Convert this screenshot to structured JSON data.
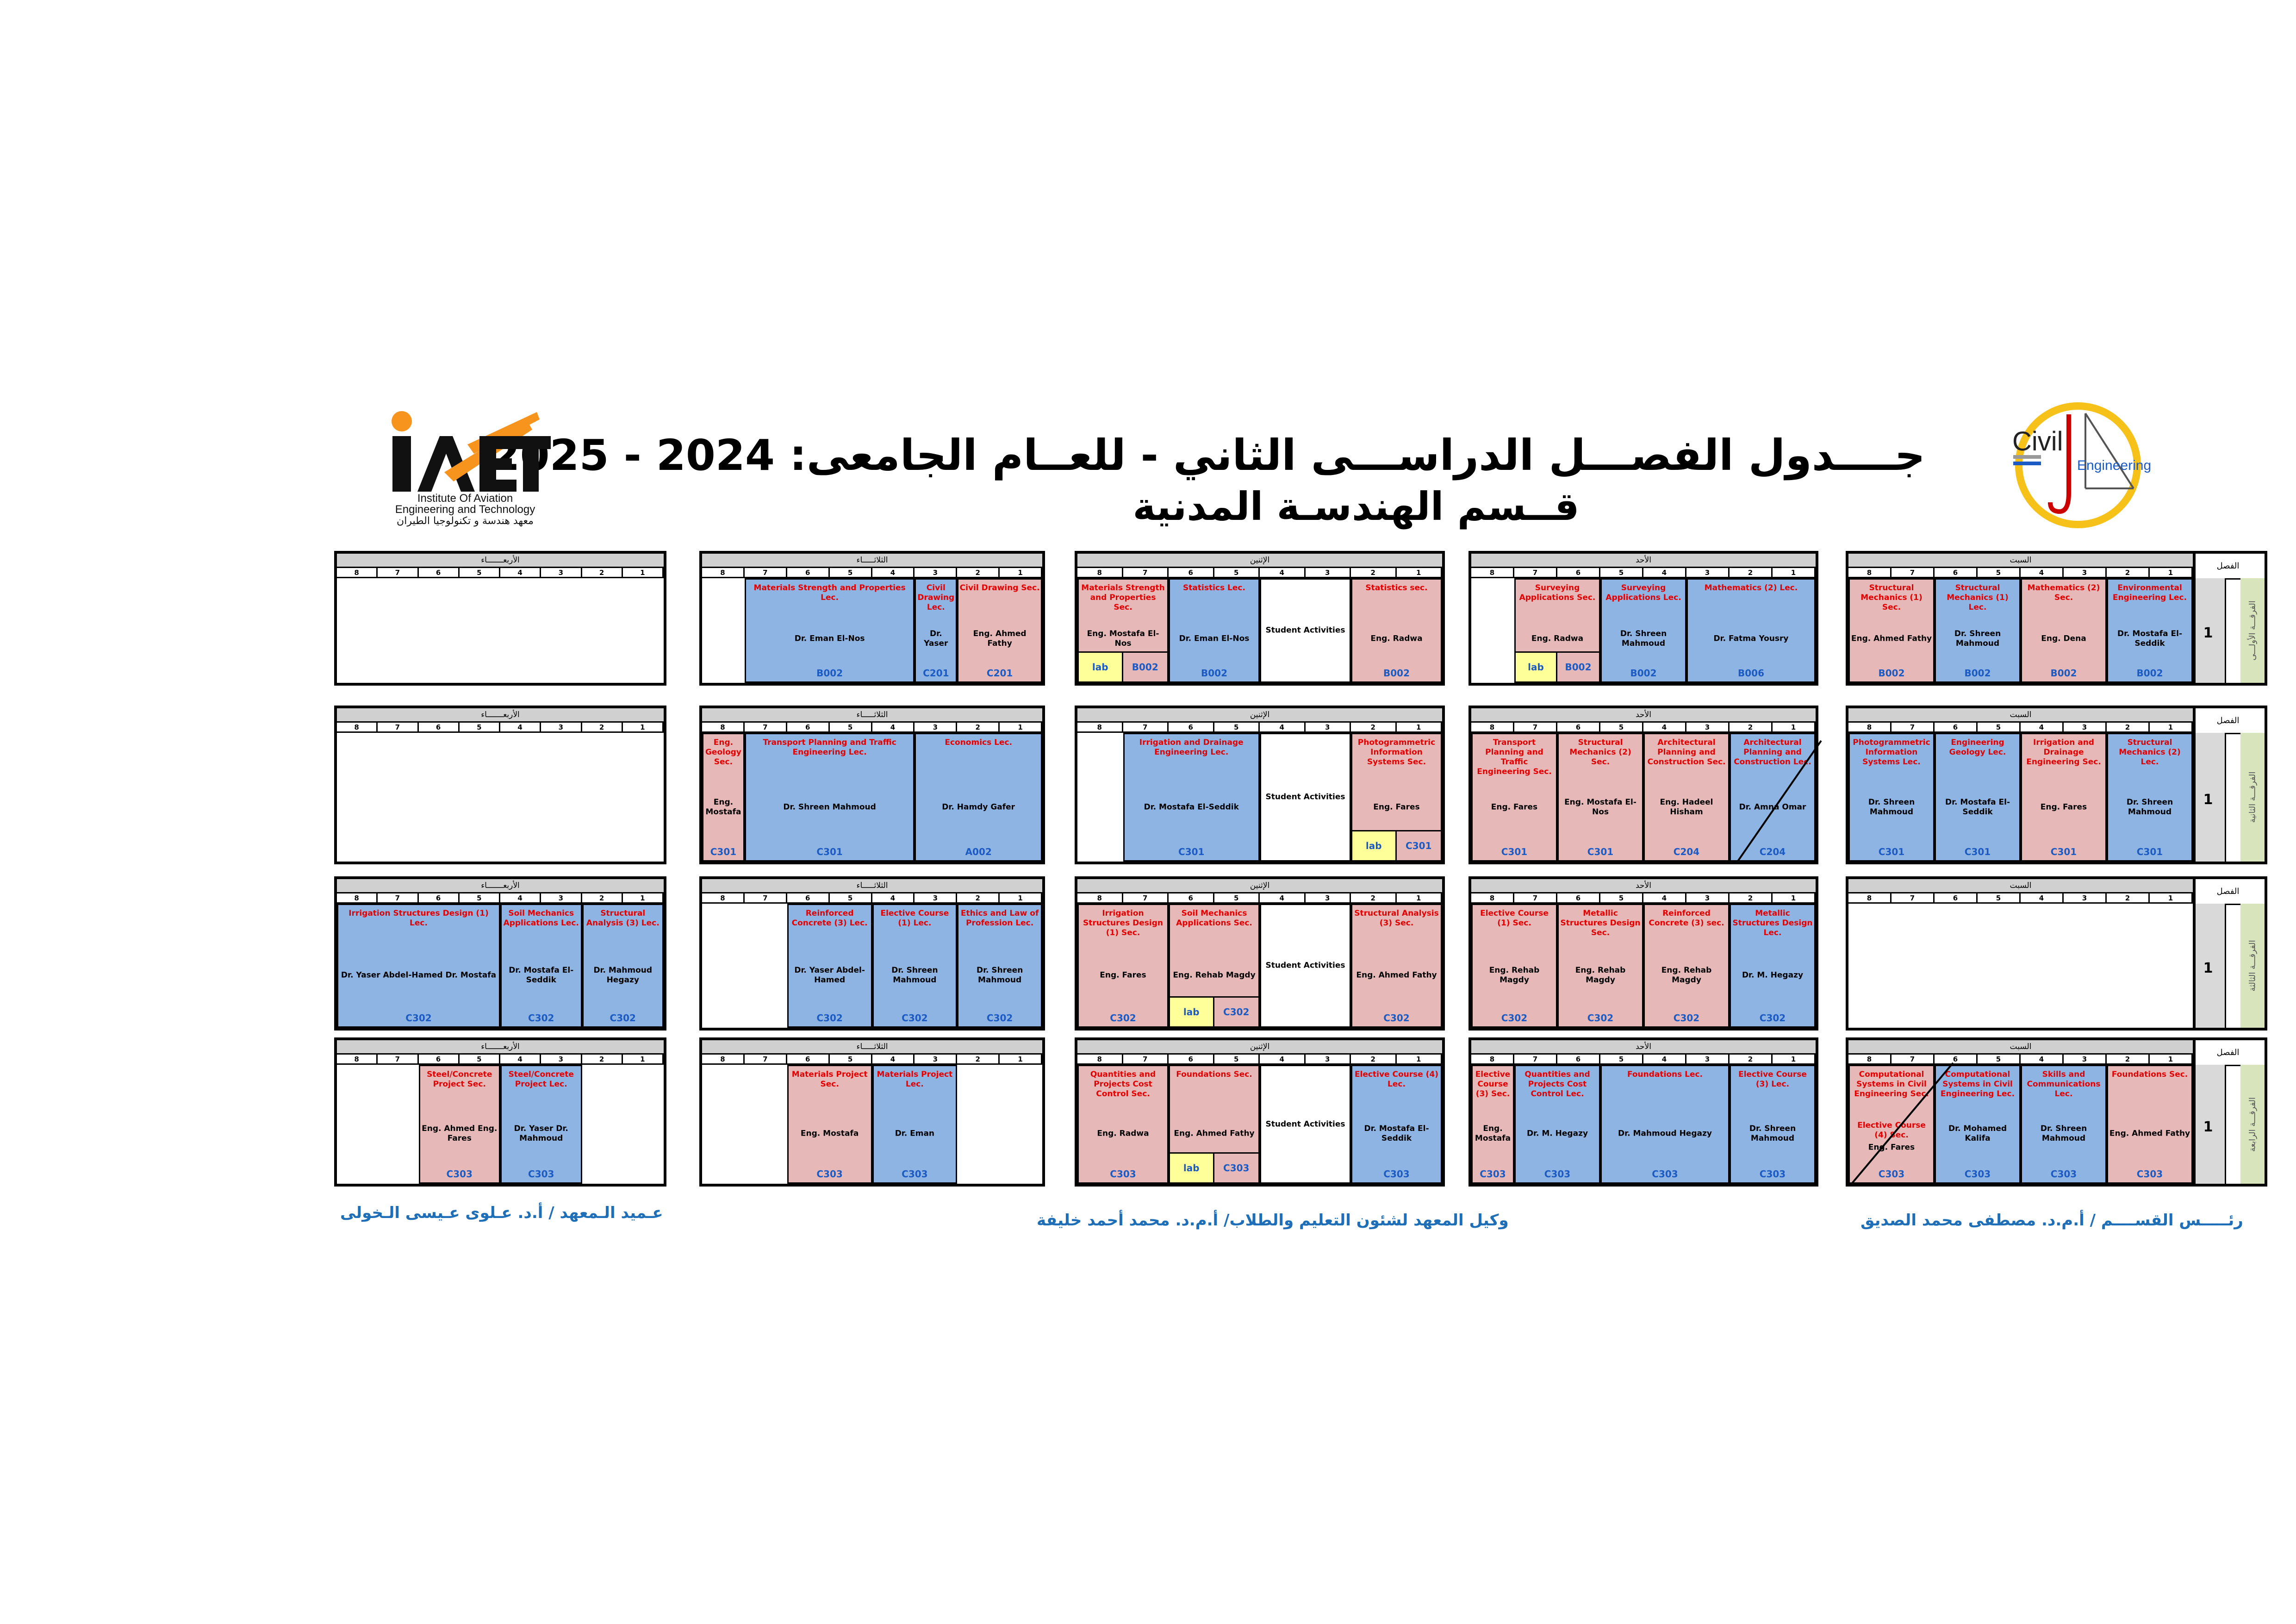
{
  "header": {
    "title_line1": "جــــدول الفصـــل الدراســـى الثاني   -    للعــام الجامعى:  2024  - 2025",
    "title_line2": "قــسم الهندسـة المدنية"
  },
  "logos": {
    "iaet_mark": "IAET",
    "iaet_name_en": "Institute Of Aviation Engineering and Technology",
    "iaet_name_ar": "معهد هندسة و تكنولوجيا الطيران",
    "civil_mark": "Civil",
    "civil_sub": "Engineering"
  },
  "colors": {
    "section": "#e6b8b7",
    "lecture": "#8db4e2",
    "lab": "#ffff99",
    "room_text": "#1d5bc4",
    "subject_text": "#e30000"
  },
  "frame": {
    "class_header": "الفصل"
  },
  "periods": [
    "8",
    "7",
    "6",
    "5",
    "4",
    "3",
    "2",
    "1"
  ],
  "years": [
    {
      "num": "1",
      "label": "الفرقـــة الأولـــى",
      "days": [
        {
          "name": "السبت",
          "cells": [
            {
              "type": "sec",
              "t": "Structural Mechanics (1) Sec.",
              "i": "Eng. Ahmed Fathy",
              "r": "B002"
            },
            {
              "type": "lec",
              "t": "Structural Mechanics (1) Lec.",
              "i": "Dr. Shreen Mahmoud",
              "r": "B002"
            },
            {
              "type": "sec",
              "t": "Mathematics (2) Sec.",
              "i": "Eng. Dena",
              "r": "B002"
            },
            {
              "type": "lec",
              "t": "Environmental Engineering Lec.",
              "i": "Dr. Mostafa El-Seddik",
              "r": "B002"
            }
          ]
        },
        {
          "name": "الأحد",
          "cells": [
            {
              "type": "sec",
              "t": "Surveying Applications Sec.",
              "i": "Eng. Radwa",
              "lab": "lab",
              "r": "B002"
            },
            {
              "type": "lec",
              "t": "Surveying Applications Lec.",
              "i": "Dr. Shreen Mahmoud",
              "r": "B002"
            },
            {
              "type": "lec",
              "t": "Mathematics (2) Lec.",
              "i": "Dr. Fatma Yousry",
              "r": "B006"
            }
          ]
        },
        {
          "name": "الإثنين",
          "cells": [
            {
              "type": "sec",
              "t": "Materials Strength and Properties Sec.",
              "i": "Eng. Mostafa El-Nos",
              "lab": "lab",
              "r": "B002"
            },
            {
              "type": "lec",
              "t": "Statistics Lec.",
              "i": "Dr. Eman El-Nos",
              "r": "B002"
            },
            {
              "type": "act",
              "i": "Student Activities"
            },
            {
              "type": "sec",
              "t": "Statistics sec.",
              "i": "Eng. Radwa",
              "r": "B002"
            }
          ]
        },
        {
          "name": "الثلاثـــــاء",
          "cells": [
            {
              "type": "lec",
              "t": "Materials Strength and Properties Lec.",
              "i": "Dr. Eman El-Nos",
              "r": "B002"
            },
            {
              "type": "lec",
              "t": "Civil Drawing Lec.",
              "i": "Dr. Yaser",
              "r": "C201"
            },
            {
              "type": "sec",
              "t": "Civil Drawing Sec.",
              "i": "Eng. Ahmed Fathy",
              "r": "C201"
            }
          ]
        },
        {
          "name": "الأربعـــــــاء",
          "cells": []
        }
      ]
    },
    {
      "num": "1",
      "label": "الفرقـــة الثانية",
      "days": [
        {
          "name": "السبت",
          "cells": [
            {
              "type": "lec",
              "t": "Photogrammetric Information Systems Lec.",
              "i": "Dr. Shreen Mahmoud",
              "r": "C301"
            },
            {
              "type": "lec",
              "t": "Engineering Geology Lec.",
              "i": "Dr. Mostafa El-Seddik",
              "r": "C301"
            },
            {
              "type": "sec",
              "t": "Irrigation and Drainage Engineering Sec.",
              "i": "Eng. Fares",
              "r": "C301"
            },
            {
              "type": "lec",
              "t": "Structural Mechanics (2) Lec.",
              "i": "Dr. Shreen Mahmoud",
              "r": "C301"
            }
          ]
        },
        {
          "name": "الأحد",
          "cells": [
            {
              "type": "sec",
              "t": "Transport Planning and Traffic Engineering Sec.",
              "i": "Eng. Fares",
              "r": "C301"
            },
            {
              "type": "sec",
              "t": "Structural Mechanics (2) Sec.",
              "i": "Eng. Mostafa El-Nos",
              "r": "C301"
            },
            {
              "type": "sec",
              "t": "Architectural Planning and Construction Sec.",
              "i": "Eng. Hadeel Hisham",
              "r": "C204"
            },
            {
              "type": "lec",
              "t": "Architectural Planning and Construction Lec.",
              "i": "Dr. Amna Omar",
              "r": "C204"
            }
          ]
        },
        {
          "name": "الإثنين",
          "cells": [
            {
              "type": "lec",
              "t": "Irrigation and Drainage Engineering Lec.",
              "i": "Dr. Mostafa El-Seddik",
              "r": "C301"
            },
            {
              "type": "act",
              "i": "Student Activities"
            },
            {
              "type": "sec",
              "t": "Photogrammetric Information Systems Sec.",
              "i": "Eng. Fares",
              "lab": "lab",
              "r": "C301"
            }
          ]
        },
        {
          "name": "الثلاثـــــاء",
          "cells": [
            {
              "type": "sec",
              "t": "Eng. Geology Sec.",
              "i": "Eng. Mostafa",
              "r": "C301"
            },
            {
              "type": "lec",
              "t": "Transport Planning and Traffic Engineering Lec.",
              "i": "Dr. Shreen Mahmoud",
              "r": "C301"
            },
            {
              "type": "lec",
              "t": "Economics Lec.",
              "i": "Dr. Hamdy Gafer",
              "r": "A002"
            }
          ]
        },
        {
          "name": "الأربعـــــــاء",
          "cells": []
        }
      ]
    },
    {
      "num": "1",
      "label": "الفرقـــة الثالثة",
      "days": [
        {
          "name": "السبت",
          "cells": []
        },
        {
          "name": "الأحد",
          "cells": [
            {
              "type": "sec",
              "t": "Elective Course (1) Sec.",
              "i": "Eng. Rehab Magdy",
              "r": "C302"
            },
            {
              "type": "sec",
              "t": "Metallic Structures Design Sec.",
              "i": "Eng. Rehab Magdy",
              "r": "C302"
            },
            {
              "type": "sec",
              "t": "Reinforced Concrete (3) sec.",
              "i": "Eng. Rehab Magdy",
              "r": "C302"
            },
            {
              "type": "lec",
              "t": "Metallic Structures Design Lec.",
              "i": "Dr. M. Hegazy",
              "r": "C302"
            }
          ]
        },
        {
          "name": "الإثنين",
          "cells": [
            {
              "type": "sec",
              "t": "Irrigation Structures Design (1) Sec.",
              "i": "Eng. Fares",
              "r": "C302"
            },
            {
              "type": "sec",
              "t": "Soil Mechanics Applications Sec.",
              "i": "Eng. Rehab Magdy",
              "lab": "lab",
              "r": "C302"
            },
            {
              "type": "act",
              "i": "Student Activities"
            },
            {
              "type": "sec",
              "t": "Structural Analysis (3) Sec.",
              "i": "Eng. Ahmed Fathy",
              "r": "C302"
            }
          ]
        },
        {
          "name": "الثلاثـــــاء",
          "cells": [
            {
              "type": "lec",
              "t": "Reinforced Concrete (3) Lec.",
              "i": "Dr. Yaser Abdel-Hamed",
              "r": "C302"
            },
            {
              "type": "lec",
              "t": "Elective Course (1) Lec.",
              "i": "Dr. Shreen Mahmoud",
              "r": "C302"
            },
            {
              "type": "lec",
              "t": "Ethics and Law of Profession Lec.",
              "i": "Dr. Shreen Mahmoud",
              "r": "C302"
            }
          ]
        },
        {
          "name": "الأربعـــــــاء",
          "cells": [
            {
              "type": "lec",
              "t": "Irrigation Structures Design (1) Lec.",
              "i": "Dr. Yaser Abdel-Hamed Dr. Mostafa",
              "r": "C302"
            },
            {
              "type": "lec",
              "t": "Soil Mechanics Applications Lec.",
              "i": "Dr. Mostafa El-Seddik",
              "r": "C302"
            },
            {
              "type": "lec",
              "t": "Structural Analysis (3) Lec.",
              "i": "Dr. Mahmoud Hegazy",
              "r": "C302"
            }
          ]
        }
      ]
    },
    {
      "num": "1",
      "label": "الفرقـــة الرابعة",
      "days": [
        {
          "name": "السبت",
          "cells": [
            {
              "type": "sec",
              "t": "Computational Systems in Civil Engineering Sec.",
              "t2": "Elective Course (4) Sec.",
              "i": "Eng. Fares",
              "r": "C303"
            },
            {
              "type": "lec",
              "t": "Computational Systems in Civil Engineering Lec.",
              "i": "Dr. Mohamed Kalifa",
              "r": "C303"
            },
            {
              "type": "lec",
              "t": "Skills and Communications Lec.",
              "i": "Dr. Shreen Mahmoud",
              "r": "C303"
            },
            {
              "type": "sec",
              "t": "Foundations Sec.",
              "i": "Eng. Ahmed Fathy",
              "r": "C303"
            }
          ]
        },
        {
          "name": "الأحد",
          "cells": [
            {
              "type": "sec",
              "t": "Elective Course (3) Sec.",
              "i": "Eng. Mostafa",
              "r": "C303"
            },
            {
              "type": "lec",
              "t": "Quantities and Projects Cost Control Lec.",
              "i": "Dr. M. Hegazy",
              "r": "C303"
            },
            {
              "type": "lec",
              "t": "Foundations Lec.",
              "i": "Dr. Mahmoud Hegazy",
              "r": "C303"
            },
            {
              "type": "lec",
              "t": "Elective Course (3) Lec.",
              "i": "Dr. Shreen Mahmoud",
              "r": "C303"
            }
          ]
        },
        {
          "name": "الإثنين",
          "cells": [
            {
              "type": "sec",
              "t": "Quantities and Projects Cost Control Sec.",
              "i": "Eng. Radwa",
              "r": "C303"
            },
            {
              "type": "sec",
              "t": "Foundations Sec.",
              "i": "Eng. Ahmed Fathy",
              "lab": "lab",
              "r": "C303"
            },
            {
              "type": "act",
              "i": "Student Activities"
            },
            {
              "type": "lec",
              "t": "Elective Course (4) Lec.",
              "i": "Dr. Mostafa El-Seddik",
              "r": "C303"
            }
          ]
        },
        {
          "name": "الثلاثـــــاء",
          "cells": [
            {
              "type": "sec",
              "t": "Materials Project Sec.",
              "i": "Eng. Mostafa",
              "r": "C303"
            },
            {
              "type": "lec",
              "t": "Materials Project Lec.",
              "i": "Dr. Eman",
              "r": "C303"
            }
          ]
        },
        {
          "name": "الأربعـــــــاء",
          "cells": [
            {
              "type": "sec",
              "t": "Steel/Concrete Project Sec.",
              "i": "Eng. Ahmed Eng. Fares",
              "r": "C303"
            },
            {
              "type": "lec",
              "t": "Steel/Concrete Project Lec.",
              "i": "Dr. Yaser Dr. Mahmoud",
              "r": "C303"
            }
          ]
        }
      ]
    }
  ],
  "signatures": {
    "head": "رئـــــس القســــم  /  أ.م.د.  مصطفى محمد الصديق",
    "vice": "وكيل المعهد لشئون التعليم والطلاب/ أ.م.د. محمد أحمد خليفة",
    "dean": "عـميد الـمعهد / أ.د. عـلوى عـيسى الـخولى"
  }
}
